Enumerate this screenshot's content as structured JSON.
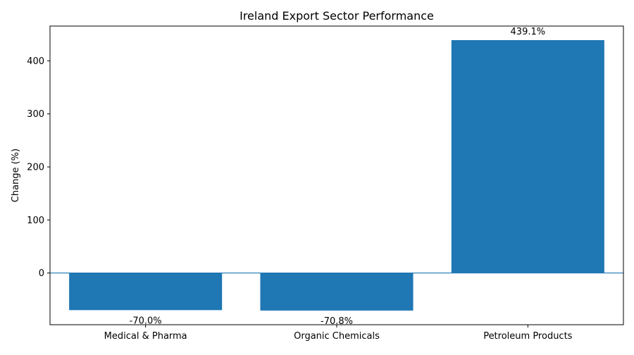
{
  "chart_data": {
    "type": "bar",
    "title": "Ireland Export Sector Performance",
    "xlabel": "",
    "ylabel": "Change (%)",
    "categories": [
      "Medical & Pharma",
      "Organic Chemicals",
      "Petroleum Products"
    ],
    "values": [
      -70.0,
      -70.8,
      439.1
    ],
    "data_labels": [
      "-70.0%",
      "-70.8%",
      "439.1%"
    ],
    "ylim": [
      -97.5,
      465.6
    ],
    "yticks": [
      0,
      100,
      200,
      300,
      400
    ],
    "grid": false,
    "legend": "none",
    "zero_line": true
  },
  "colors": {
    "bar": "#1f77b4",
    "zero_line": "#1f77b4",
    "axis": "#000000"
  }
}
